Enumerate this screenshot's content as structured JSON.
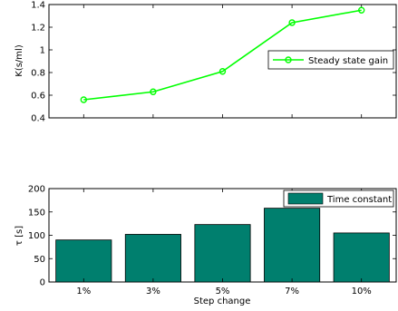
{
  "chart_data": [
    {
      "type": "line",
      "categories": [
        "1%",
        "3%",
        "5%",
        "7%",
        "10%"
      ],
      "series": [
        {
          "name": "Steady state gain",
          "values": [
            0.56,
            0.63,
            0.81,
            1.24,
            1.35
          ],
          "color": "#00ff00"
        }
      ],
      "ylabel": "K(s/ml)",
      "ylim": [
        0.4,
        1.4
      ],
      "yticks": [
        "0.4",
        "0.6",
        "0.8",
        "1",
        "1.2",
        "1.4"
      ],
      "legend": "right",
      "grid": false
    },
    {
      "type": "bar",
      "categories": [
        "1%",
        "3%",
        "5%",
        "7%",
        "10%"
      ],
      "series": [
        {
          "name": "Time constant",
          "values": [
            90,
            102,
            123,
            158,
            105
          ],
          "color": "#007f6e"
        }
      ],
      "xlabel": "Step change",
      "ylabel": "τ [s]",
      "ylim": [
        0,
        200
      ],
      "yticks": [
        "0",
        "50",
        "100",
        "150",
        "200"
      ],
      "legend": "top-right",
      "grid": false
    }
  ]
}
